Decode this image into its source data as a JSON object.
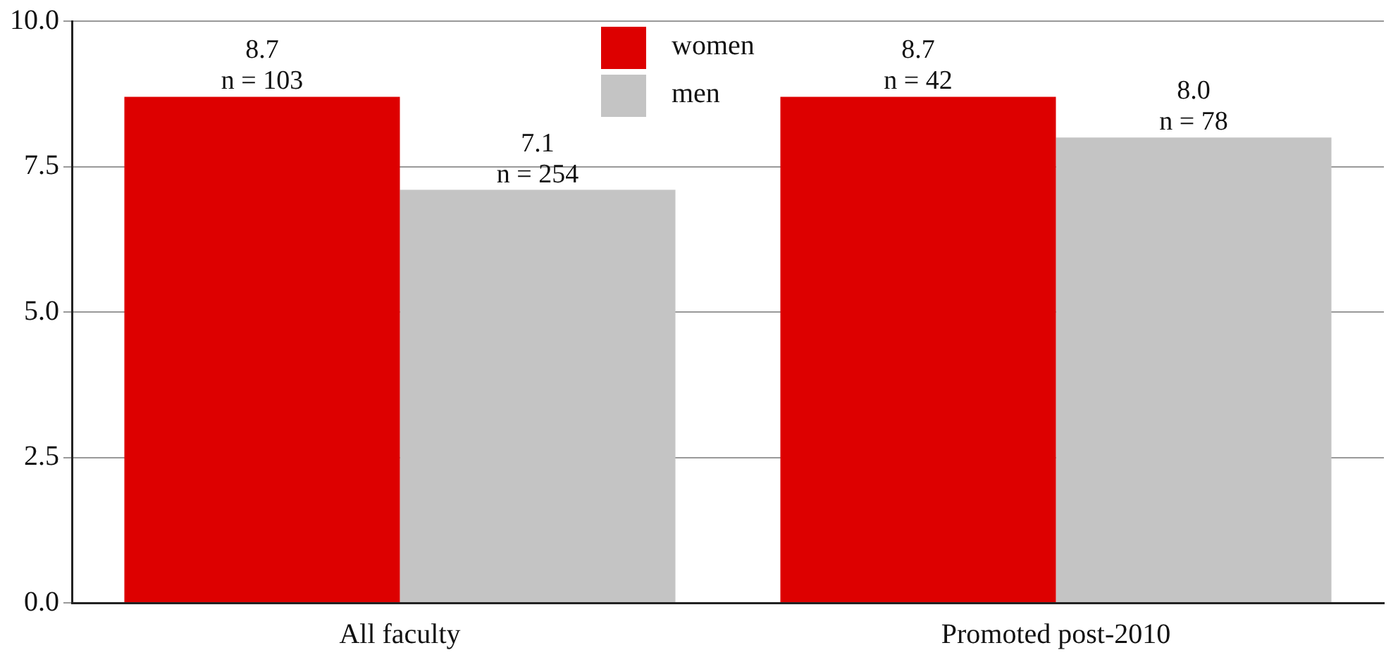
{
  "chart_data": {
    "type": "bar",
    "categories": [
      "All faculty",
      "Promoted post-2010"
    ],
    "series": [
      {
        "name": "women",
        "color": "#dd0000",
        "values": [
          8.7,
          8.7
        ],
        "value_labels": [
          "8.7\nn = 103",
          "8.7\nn = 42"
        ]
      },
      {
        "name": "men",
        "color": "#c4c4c4",
        "values": [
          7.1,
          8.0
        ],
        "value_labels": [
          "7.1\nn = 254",
          "8.0\nn = 78"
        ]
      }
    ],
    "ylim": [
      0,
      10
    ],
    "yticks": [
      {
        "value": 0,
        "label": "0.0"
      },
      {
        "value": 2.5,
        "label": "2.5"
      },
      {
        "value": 5,
        "label": "5.0"
      },
      {
        "value": 7.5,
        "label": "7.5"
      },
      {
        "value": 10,
        "label": "10.0"
      }
    ],
    "grid": "y",
    "legend": "top"
  }
}
